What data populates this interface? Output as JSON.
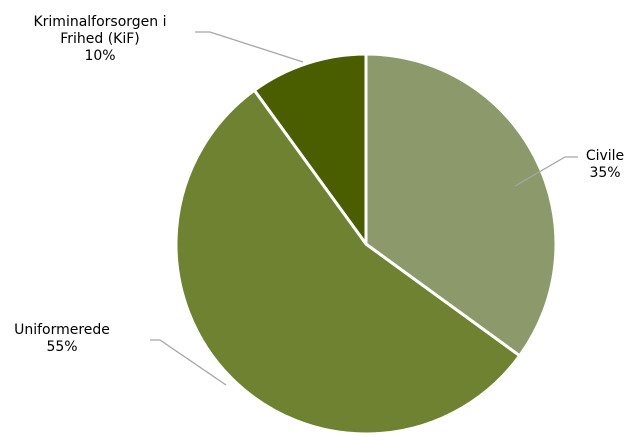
{
  "chart_data": {
    "type": "pie",
    "categories": [
      "Civile",
      "Uniformerede",
      "Kriminalforsorgen i Frihed (KiF)"
    ],
    "values": [
      35,
      55,
      10
    ],
    "value_labels": [
      "35%",
      "55%",
      "10%"
    ],
    "colors": [
      "#8c9a6b",
      "#6e8232",
      "#4a5e00"
    ]
  }
}
